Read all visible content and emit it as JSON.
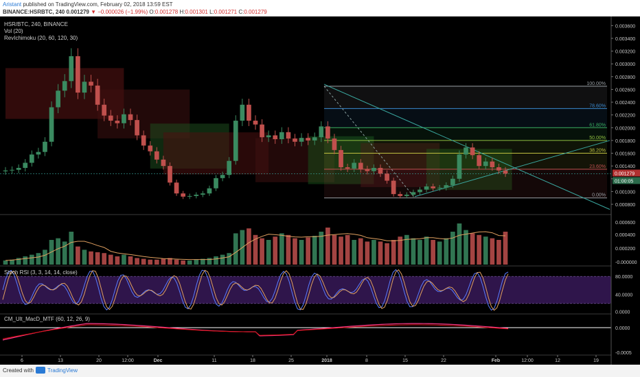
{
  "header": {
    "author": "Aristant",
    "published": "published on TradingView.com, February 02, 2018 13:59 EST",
    "symbol": "BINANCE:HSRBTC, 240",
    "last": "0.001279",
    "change": "▼ −0.000026 (−1.99%)",
    "o_label": "O:",
    "o": "0.001278",
    "h_label": "H:",
    "h": "0.001301",
    "l_label": "L:",
    "l": "0.001271",
    "c_label": "C:",
    "c": "0.001279"
  },
  "legend": {
    "title": "HSR/BTC, 240, BINANCE",
    "vol": "Vol (20)",
    "ichimoku": "RevIchimoku (20, 60, 120, 30)",
    "stoch": "Stoch RSI (3, 3, 14, 14, close)",
    "macd": "CM_Ult_MacD_MTF (60, 12, 26, 9)"
  },
  "footer": {
    "created_with": "Created with",
    "brand": "TradingView"
  },
  "colors": {
    "background": "#000000",
    "up": "#3a8a60",
    "down": "#c0504d",
    "stoch_k": "#5a7cff",
    "stoch_d": "#e0a060",
    "stoch_band": "#3b1a5e",
    "macd_line": "#ff3a8c",
    "macd_signal": "#d01010",
    "trendline": "#3aa8a0",
    "current_price_line": "#3aa8a0"
  },
  "chart_data": [
    {
      "type": "line",
      "name": "price",
      "x_ticks": [
        "6",
        "13",
        "20",
        "12:00",
        "Dec",
        "11",
        "18",
        "25",
        "2018",
        "8",
        "15",
        "22",
        "Feb",
        "12:00",
        "12",
        "19"
      ],
      "y_ticks": [
        "0.003600",
        "0.003400",
        "0.003200",
        "0.003000",
        "0.002800",
        "0.002600",
        "0.002400",
        "0.002200",
        "0.002000",
        "0.001800",
        "0.001600",
        "0.001400",
        "0.001200",
        "0.001000",
        "0.000800"
      ],
      "ylim": [
        0.00065,
        0.0037
      ],
      "current_price": "0.001279",
      "current_countdown": "01:00:05",
      "close": [
        0.00133,
        0.00134,
        0.00137,
        0.00145,
        0.00158,
        0.00162,
        0.00178,
        0.00232,
        0.00258,
        0.00273,
        0.00312,
        0.00255,
        0.00272,
        0.00266,
        0.00236,
        0.00219,
        0.00211,
        0.00207,
        0.00221,
        0.00212,
        0.00188,
        0.00172,
        0.00163,
        0.0015,
        0.0014,
        0.00114,
        0.00097,
        0.00092,
        0.00093,
        0.00095,
        0.00097,
        0.00105,
        0.00121,
        0.00126,
        0.00148,
        0.00211,
        0.00236,
        0.00211,
        0.00205,
        0.00185,
        0.00188,
        0.00182,
        0.00193,
        0.00183,
        0.00178,
        0.00184,
        0.0018,
        0.00185,
        0.00202,
        0.00183,
        0.00165,
        0.00138,
        0.00136,
        0.00145,
        0.00135,
        0.00132,
        0.00137,
        0.00128,
        0.00117,
        0.00096,
        0.00093,
        0.00095,
        0.00099,
        0.00103,
        0.00108,
        0.00105,
        0.00106,
        0.0011,
        0.0012,
        0.00158,
        0.00169,
        0.00157,
        0.0014,
        0.00147,
        0.00138,
        0.00133,
        0.00128
      ],
      "fibonacci": [
        {
          "label": "100.00%",
          "value": 0.00265,
          "color": "#9aa0a6"
        },
        {
          "label": "78.60%",
          "value": 0.0023,
          "color": "#3a8ad0"
        },
        {
          "label": "61.80%",
          "value": 0.002,
          "color": "#3ab060"
        },
        {
          "label": "50.00%",
          "value": 0.0018,
          "color": "#90c040"
        },
        {
          "label": "38.20%",
          "value": 0.0016,
          "color": "#c0c040"
        },
        {
          "label": "23.60%",
          "value": 0.00135,
          "color": "#c05050"
        },
        {
          "label": "0.00%",
          "value": 0.0009,
          "color": "#9aa0a6"
        }
      ]
    },
    {
      "type": "bar",
      "name": "Vol (20)",
      "y_ticks": [
        "0.000600",
        "0.000400",
        "0.000200",
        "-0.000000"
      ],
      "values": [
        0.05,
        0.06,
        0.08,
        0.1,
        0.12,
        0.14,
        0.18,
        0.3,
        0.32,
        0.28,
        0.4,
        0.22,
        0.18,
        0.16,
        0.15,
        0.14,
        0.12,
        0.1,
        0.12,
        0.1,
        0.08,
        0.07,
        0.06,
        0.06,
        0.07,
        0.08,
        0.06,
        0.05,
        0.05,
        0.06,
        0.07,
        0.08,
        0.1,
        0.12,
        0.14,
        0.38,
        0.42,
        0.44,
        0.36,
        0.32,
        0.3,
        0.34,
        0.38,
        0.36,
        0.32,
        0.3,
        0.33,
        0.35,
        0.4,
        0.45,
        0.36,
        0.34,
        0.36,
        0.3,
        0.32,
        0.28,
        0.3,
        0.28,
        0.26,
        0.3,
        0.34,
        0.36,
        0.32,
        0.3,
        0.34,
        0.3,
        0.28,
        0.32,
        0.4,
        0.5,
        0.42,
        0.38,
        0.36,
        0.34,
        0.32,
        0.3,
        0.4
      ]
    },
    {
      "type": "line",
      "name": "Stoch RSI",
      "y_ticks": [
        "80.0000",
        "40.0000",
        "0.0000"
      ],
      "ylim": [
        0,
        100
      ]
    },
    {
      "type": "line",
      "name": "CM_Ult_MacD_MTF",
      "y_ticks": [
        "0.0000",
        "-0.0005"
      ]
    }
  ]
}
